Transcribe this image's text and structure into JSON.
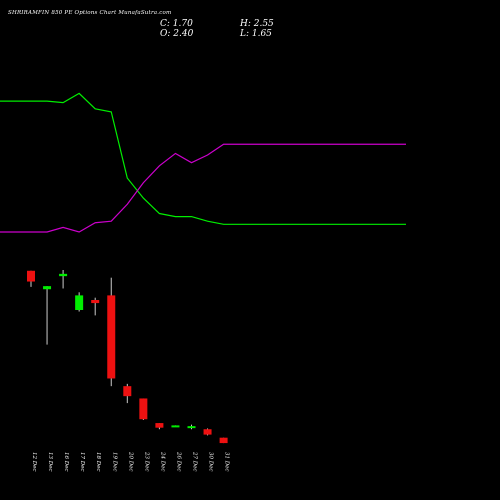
{
  "chart_data": {
    "type": "candlestick",
    "title": "SHRIRAMFIN 850 PE Options Chart MunafaSutra.com",
    "summary": {
      "C": "1.70",
      "O": "2.40",
      "H": "2.55",
      "L": "1.65"
    },
    "categories": [
      "12 Dec",
      "13 Dec",
      "16 Dec",
      "17 Dec",
      "18 Dec",
      "19 Dec",
      "20 Dec",
      "23 Dec",
      "24 Dec",
      "26 Dec",
      "27 Dec",
      "30 Dec",
      "31 Dec"
    ],
    "ohlc": [
      {
        "open": 25.6,
        "high": 25.6,
        "low": 23.5,
        "close": 24.2
      },
      {
        "open": 23.2,
        "high": 23.6,
        "low": 16.0,
        "close": 23.6
      },
      {
        "open": 24.9,
        "high": 25.7,
        "low": 23.3,
        "close": 25.2
      },
      {
        "open": 20.5,
        "high": 22.8,
        "low": 20.3,
        "close": 22.4
      },
      {
        "open": 21.8,
        "high": 22.1,
        "low": 19.8,
        "close": 21.4
      },
      {
        "open": 22.4,
        "high": 24.7,
        "low": 10.6,
        "close": 11.6
      },
      {
        "open": 10.6,
        "high": 10.9,
        "low": 8.4,
        "close": 9.3
      },
      {
        "open": 9.0,
        "high": 9.0,
        "low": 6.2,
        "close": 6.3
      },
      {
        "open": 5.8,
        "high": 5.8,
        "low": 5.0,
        "close": 5.2
      },
      {
        "open": 5.4,
        "high": 5.5,
        "low": 5.3,
        "close": 5.5
      },
      {
        "open": 5.2,
        "high": 5.6,
        "low": 5.0,
        "close": 5.4
      },
      {
        "open": 5.0,
        "high": 5.1,
        "low": 4.2,
        "close": 4.3
      },
      {
        "open": 3.9,
        "high": 3.9,
        "low": 3.2,
        "close": 3.2
      }
    ],
    "price_range": [
      1,
      27
    ],
    "series": [
      {
        "values": [
          0.85,
          0.85,
          0.84,
          0.9,
          0.8,
          0.78,
          0.35,
          0.22,
          0.12,
          0.1,
          0.1,
          0.07,
          0.05
        ],
        "color": "#00ee00"
      },
      {
        "values": [
          0.0,
          0.0,
          0.03,
          0.0,
          0.06,
          0.07,
          0.18,
          0.32,
          0.43,
          0.51,
          0.45,
          0.5,
          0.57
        ],
        "color": "#cc00cc"
      }
    ],
    "colors": {
      "up": "#00ee00",
      "down": "#ee1111",
      "wick": "#cccccc",
      "label": "#ffffff"
    }
  }
}
